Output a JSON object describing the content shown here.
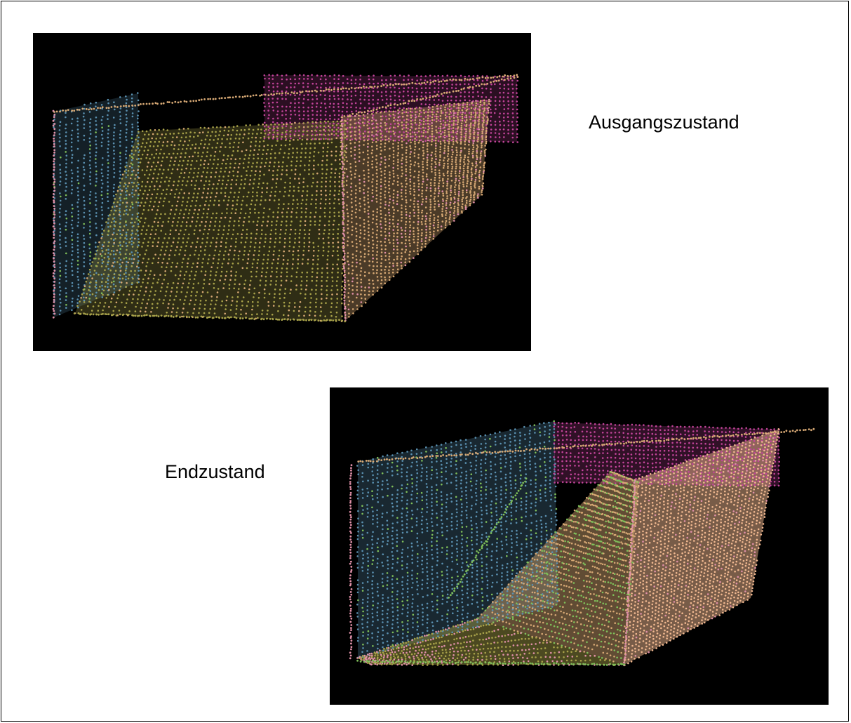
{
  "labels": {
    "initial_state": "Ausgangszustand",
    "final_state": "Endzustand"
  },
  "colors": {
    "background": "#000000",
    "left_wall": "#5a90b0",
    "back_wall": "#c2449a",
    "floor": "#a8a24a",
    "slope_body": "#d6a874",
    "right_wall": "#f0b890",
    "debris_green": "#7fbf5a",
    "debris_pink": "#e090a8"
  },
  "panels": [
    {
      "name": "initial",
      "state": "initial"
    },
    {
      "name": "final",
      "state": "final"
    }
  ]
}
